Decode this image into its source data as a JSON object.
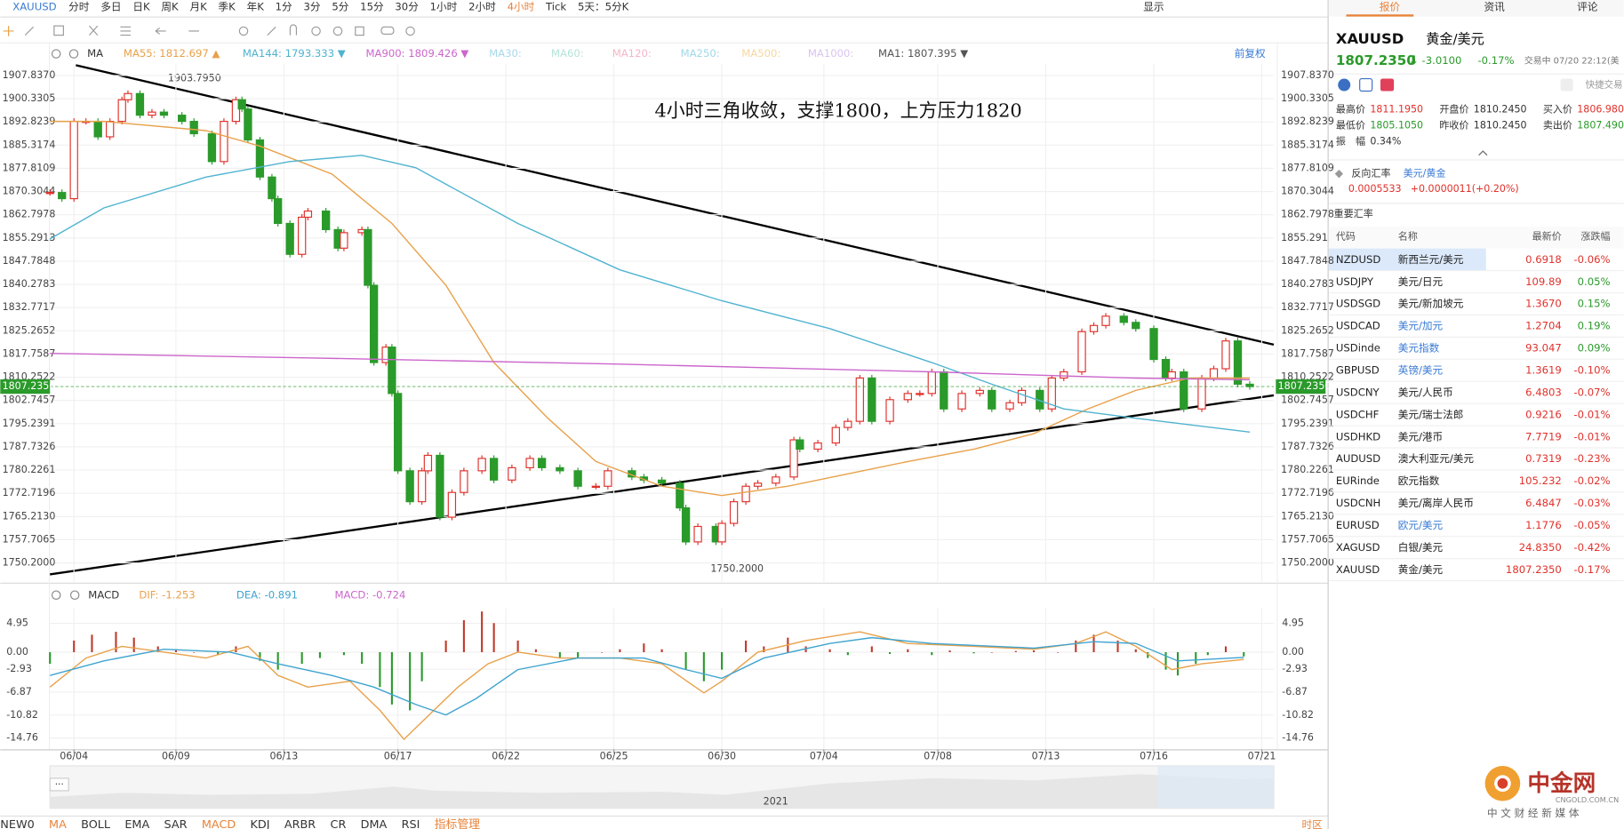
{
  "toolbar": {
    "symbol": "XAUUSD",
    "periods": [
      "分时",
      "多日",
      "日K",
      "周K",
      "月K",
      "季K",
      "年K",
      "1分",
      "3分",
      "5分",
      "15分",
      "30分",
      "1小时",
      "2小时",
      "4小时",
      "Tick",
      "5天：5分K"
    ],
    "active": 14,
    "display": "显示"
  },
  "indicator_bar": {
    "label": "MA",
    "inactive": [
      {
        "name": "MA30:",
        "color": "#a8d8ea"
      },
      {
        "name": "MA60:",
        "color": "#b5e3d8"
      },
      {
        "name": "MA120:",
        "color": "#f4b6c8"
      },
      {
        "name": "MA250:",
        "color": "#9fd8e8"
      },
      {
        "name": "MA500:",
        "color": "#f5d7a0"
      },
      {
        "name": "MA1000:",
        "color": "#d9c4ee"
      }
    ],
    "adjust": "前复权"
  },
  "annotations": [
    "1903.7950",
    "1750.2000",
    "4小时三角收敛，支撑1800，上方压力1820"
  ],
  "chart_data": [
    {
      "type": "candlestick",
      "name": "MA1: 1807.395 ▼",
      "up_color": "#e0312b",
      "down_color": "#2a9a2a",
      "x": [
        0,
        2,
        4,
        6,
        8,
        10,
        12,
        13,
        15,
        17,
        19,
        22,
        24,
        27,
        29,
        31,
        32,
        33,
        35,
        37,
        38,
        40,
        42,
        43,
        46,
        48,
        49,
        52,
        53,
        54,
        56,
        57,
        58,
        60,
        62,
        63,
        65,
        67,
        69,
        72,
        74,
        77,
        80,
        82,
        85,
        88,
        91,
        93,
        97,
        99,
        102,
        105,
        106,
        108,
        111,
        112,
        114,
        116,
        118,
        121,
        124,
        125,
        128,
        131,
        133,
        135,
        137,
        140,
        143,
        145,
        147,
        149,
        152,
        155,
        157,
        160,
        162,
        165,
        167,
        169,
        172,
        174,
        176,
        179,
        181,
        184,
        186,
        187,
        189,
        192,
        194,
        196,
        198,
        200
      ],
      "values": [
        1870,
        1868,
        1893,
        1893,
        1888,
        1893,
        1900,
        1902,
        1895,
        1896,
        1895,
        1893,
        1889,
        1880,
        1893,
        1900,
        1897,
        1887,
        1875,
        1868,
        1860,
        1850,
        1862,
        1864,
        1858,
        1852,
        1857,
        1858,
        1840,
        1815,
        1820,
        1805,
        1780,
        1770,
        1780,
        1785,
        1765,
        1773,
        1780,
        1784,
        1777,
        1781,
        1784,
        1781,
        1780,
        1775,
        1775,
        1780,
        1778,
        1777,
        1776,
        1768,
        1757,
        1762,
        1757,
        1763,
        1770,
        1775,
        1776,
        1778,
        1790,
        1787,
        1789,
        1794,
        1796,
        1810,
        1796,
        1803,
        1805,
        1805,
        1812,
        1800,
        1805,
        1806,
        1800,
        1802,
        1806,
        1800,
        1810,
        1812,
        1825,
        1827,
        1830,
        1828,
        1826,
        1816,
        1810,
        1812,
        1800,
        1810,
        1813,
        1822,
        1808,
        1807.235
      ],
      "series": [
        {
          "name": "MA55: 1812.697 ▲",
          "color": "#e8a14a",
          "x": [
            0,
            9,
            26,
            35,
            47,
            57,
            66,
            74,
            83,
            91,
            102,
            112,
            123,
            133,
            143,
            154,
            164,
            173,
            181,
            190,
            200
          ],
          "values": [
            1893,
            1893,
            1890,
            1885,
            1876,
            1860,
            1840,
            1815,
            1797,
            1783,
            1775,
            1772,
            1775,
            1779,
            1783,
            1787,
            1792,
            1800,
            1806,
            1810,
            1810
          ]
        },
        {
          "name": "MA144: 1793.333 ▼",
          "color": "#4fb3d0",
          "x": [
            0,
            9,
            26,
            40,
            52,
            61,
            78,
            95,
            112,
            130,
            147,
            157,
            169,
            181,
            200
          ],
          "values": [
            1855,
            1865,
            1875,
            1880,
            1882,
            1878,
            1860,
            1845,
            1835,
            1826,
            1815,
            1808,
            1800,
            1797,
            1792.5
          ]
        },
        {
          "name": "MA900: 1809.426 ▼",
          "color": "#cc66cc",
          "x": [
            0,
            43,
            95,
            147,
            181,
            200
          ],
          "values": [
            1818,
            1816.5,
            1814.5,
            1812,
            1810,
            1809.4
          ]
        }
      ],
      "last": {
        "value": 1807.235,
        "label": "1807.2350",
        "color": "#2a9a2a"
      },
      "xlim": [
        0,
        204
      ],
      "ylim": [
        1744.15,
        1911.5
      ],
      "grid": true,
      "xticks": [
        {
          "value": 4,
          "label": "06/04"
        },
        {
          "value": 21,
          "label": "06/09"
        },
        {
          "value": 39,
          "label": "06/13"
        },
        {
          "value": 58,
          "label": "06/17"
        },
        {
          "value": 76,
          "label": "06/22"
        },
        {
          "value": 94,
          "label": "06/25"
        },
        {
          "value": 112,
          "label": "06/30"
        },
        {
          "value": 129,
          "label": "07/04"
        },
        {
          "value": 148,
          "label": "07/08"
        },
        {
          "value": 166,
          "label": "07/13"
        },
        {
          "value": 184,
          "label": "07/16"
        },
        {
          "value": 202,
          "label": "07/21"
        }
      ],
      "yticks": [
        {
          "value": 1907.837,
          "label": "1907.8370"
        },
        1900.3305,
        1892.8239,
        1885.3174,
        1877.8109,
        1870.3044,
        1862.7978,
        1855.2913,
        1847.7848,
        1840.2783,
        1832.7717,
        1825.2652,
        1817.7587,
        1810.2522,
        1802.7457,
        1795.2391,
        1787.7326,
        1780.2261,
        1772.7196,
        {
          "value": 1765.213,
          "label": "1765.2130"
        },
        1757.7065,
        {
          "value": 1750.2,
          "label": "1750.2000"
        }
      ]
    },
    {
      "type": "macd",
      "title": "MACD",
      "name": "MACD: -0.724",
      "color": "#cc66cc",
      "up_color": "#c0392b",
      "down_color": "#2a9a2a",
      "x": [
        0,
        4,
        7,
        11,
        14,
        18,
        21,
        24,
        28,
        31,
        35,
        38,
        42,
        45,
        49,
        52,
        55,
        57,
        60,
        62,
        66,
        69,
        72,
        74,
        78,
        81,
        85,
        88,
        92,
        95,
        99,
        102,
        106,
        109,
        112,
        116,
        119,
        123,
        126,
        130,
        133,
        137,
        140,
        143,
        147,
        150,
        154,
        157,
        161,
        164,
        168,
        171,
        174,
        178,
        181,
        183,
        186,
        188,
        191,
        193,
        196,
        199
      ],
      "values": [
        -2,
        2,
        3,
        3.5,
        2.5,
        1,
        0.5,
        0,
        -0.5,
        1,
        -1.5,
        -3,
        -2,
        -1,
        -0.5,
        -2,
        -6,
        -9,
        -10,
        -5,
        2,
        5.5,
        7,
        5,
        2,
        0.5,
        -1,
        -1,
        0,
        0.5,
        1.5,
        0.5,
        -3,
        -5,
        -3,
        2,
        1,
        2.5,
        1,
        0.5,
        -0.5,
        1,
        -0.3,
        0.5,
        -0.5,
        0.3,
        -0.2,
        0,
        0.2,
        0.3,
        0,
        2,
        3,
        2,
        0.5,
        -1,
        -3,
        -4,
        -2,
        -0.5,
        1,
        -0.724
      ],
      "series": [
        {
          "name": "DIF: -1.253",
          "color": "#e8a14a",
          "x": [
            0,
            6,
            12,
            19,
            26,
            33,
            38,
            43,
            50,
            55,
            59,
            62,
            68,
            73,
            78,
            85,
            95,
            102,
            109,
            112,
            118,
            126,
            135,
            143,
            154,
            164,
            171,
            176,
            181,
            187,
            192,
            199
          ],
          "values": [
            -6,
            -1,
            1,
            0,
            -1,
            1,
            -4,
            -6,
            -5,
            -10,
            -15,
            -12,
            -6,
            -2,
            0,
            -1,
            -1,
            -2,
            -7,
            -5,
            0,
            2,
            3.5,
            1.5,
            1,
            0.5,
            1.5,
            3.5,
            1,
            -3,
            -2,
            -1.253
          ]
        },
        {
          "name": "DEA: -0.891",
          "color": "#3fa4cf",
          "x": [
            0,
            9,
            19,
            30,
            38,
            47,
            54,
            61,
            66,
            71,
            78,
            88,
            99,
            106,
            112,
            119,
            130,
            137,
            147,
            164,
            174,
            181,
            188,
            199
          ],
          "values": [
            -4,
            -1.5,
            0.5,
            0,
            -2,
            -4,
            -6,
            -9,
            -10.8,
            -8,
            -3,
            -1,
            -1,
            -3,
            -4.5,
            -1,
            1.5,
            2.5,
            1.5,
            0.7,
            1.8,
            1.5,
            -1.5,
            -0.891
          ]
        }
      ],
      "xlim": [
        0,
        204
      ],
      "ylim": [
        -16.7,
        7.5
      ],
      "grid": true,
      "yticks": [
        4.95,
        {
          "value": 0,
          "label": "0.00"
        },
        -2.93,
        -6.87,
        -10.82,
        -14.76
      ]
    }
  ],
  "navigator": {
    "year": "2021",
    "more": "···"
  },
  "bottom_tabs": {
    "items": [
      "NEW0",
      "MA",
      "BOLL",
      "EMA",
      "SAR",
      "MACD",
      "KDJ",
      "ARBR",
      "CR",
      "DMA",
      "RSI",
      "指标管理"
    ],
    "highlight": [
      1,
      5,
      11
    ],
    "timezone": "时区"
  },
  "panel": {
    "tabs": [
      "报价",
      "资讯",
      "评论"
    ],
    "symbol": "XAUUSD",
    "name": "黄金/美元",
    "arrow": "⬇",
    "change": "-3.0100",
    "change_pct": "-0.17%",
    "status": "交易中 07/20 22:12(美",
    "quick": "快捷交易",
    "stats": [
      [
        {
          "label": "最高价",
          "value": "1811.1950",
          "color": "#e0312b"
        },
        {
          "label": "开盘价",
          "value": "1810.2450",
          "color": "#333"
        },
        {
          "label": "买入价",
          "value": "1806.980",
          "color": "#e0312b"
        }
      ],
      [
        {
          "label": "最低价",
          "value": "1805.1050",
          "color": "#2a9a2a"
        },
        {
          "label": "昨收价",
          "value": "1810.2450",
          "color": "#333"
        },
        {
          "label": "卖出价",
          "value": "1807.490",
          "color": "#2a9a2a"
        }
      ],
      [
        {
          "label": "振　幅",
          "value": "0.34%",
          "color": "#333"
        }
      ]
    ],
    "inverse": {
      "label": "反向汇率",
      "pair": "美元/黄金",
      "rate": "0.0005533",
      "change": "+0.0000011(+0.20%)"
    },
    "section": "重要汇率",
    "table": {
      "header": [
        "代码",
        "名称",
        "最新价",
        "涨跌幅"
      ],
      "rows": [
        [
          "NZDUSD",
          "新西兰元/美元",
          "0.6918",
          "-0.06%"
        ],
        [
          "USDJPY",
          "美元/日元",
          "109.89",
          "0.05%"
        ],
        [
          "USDSGD",
          "美元/新加坡元",
          "1.3670",
          "0.15%"
        ],
        [
          "USDCAD",
          "美元/加元",
          "1.2704",
          "0.19%"
        ],
        [
          "USDinde",
          "美元指数",
          "93.047",
          "0.09%"
        ],
        [
          "GBPUSD",
          "英镑/美元",
          "1.3619",
          "-0.10%"
        ],
        [
          "USDCNY",
          "美元/人民币",
          "6.4803",
          "-0.07%"
        ],
        [
          "USDCHF",
          "美元/瑞士法郎",
          "0.9216",
          "-0.01%"
        ],
        [
          "USDHKD",
          "美元/港币",
          "7.7719",
          "-0.01%"
        ],
        [
          "AUDUSD",
          "澳大利亚元/美元",
          "0.7319",
          "-0.23%"
        ],
        [
          "EURinde",
          "欧元指数",
          "105.232",
          "-0.02%"
        ],
        [
          "USDCNH",
          "美元/离岸人民币",
          "6.4847",
          "-0.03%"
        ],
        [
          "EURUSD",
          "欧元/美元",
          "1.1776",
          "-0.05%"
        ],
        [
          "XAGUSD",
          "白银/美元",
          "24.8350",
          "-0.42%"
        ],
        [
          "XAUUSD",
          "黄金/美元",
          "1807.2350",
          "-0.17%"
        ]
      ]
    }
  },
  "logo": {
    "name": "中金网",
    "domain": "CNGOLD.COM.CN",
    "slogan": "中 文 财 经 新 媒 体"
  }
}
